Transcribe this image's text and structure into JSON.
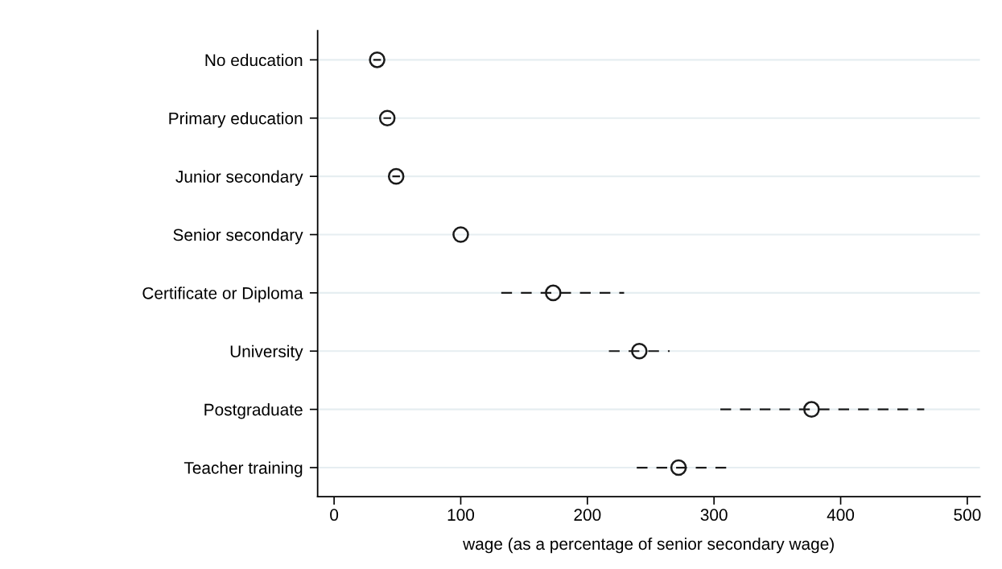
{
  "chart_data": {
    "type": "scatter",
    "orientation": "horizontal",
    "xlabel": "wage (as a percentage of senior secondary wage)",
    "categories": [
      "No education",
      "Primary education",
      "Junior secondary",
      "Senior secondary",
      "Certificate or Diploma",
      "University",
      "Postgraduate",
      "Teacher training"
    ],
    "values": [
      34,
      42,
      49,
      100,
      173,
      241,
      377,
      272
    ],
    "errors": [
      3,
      3,
      3,
      null,
      [
        132,
        229
      ],
      [
        217,
        265
      ],
      [
        305,
        466
      ],
      [
        239,
        313
      ]
    ],
    "color": "#1a1a1a",
    "marker": "circle",
    "line_style": "dashed",
    "xlim": [
      -13,
      510
    ],
    "xticks": [
      0,
      100,
      200,
      300,
      400,
      500
    ],
    "grid": "y"
  }
}
